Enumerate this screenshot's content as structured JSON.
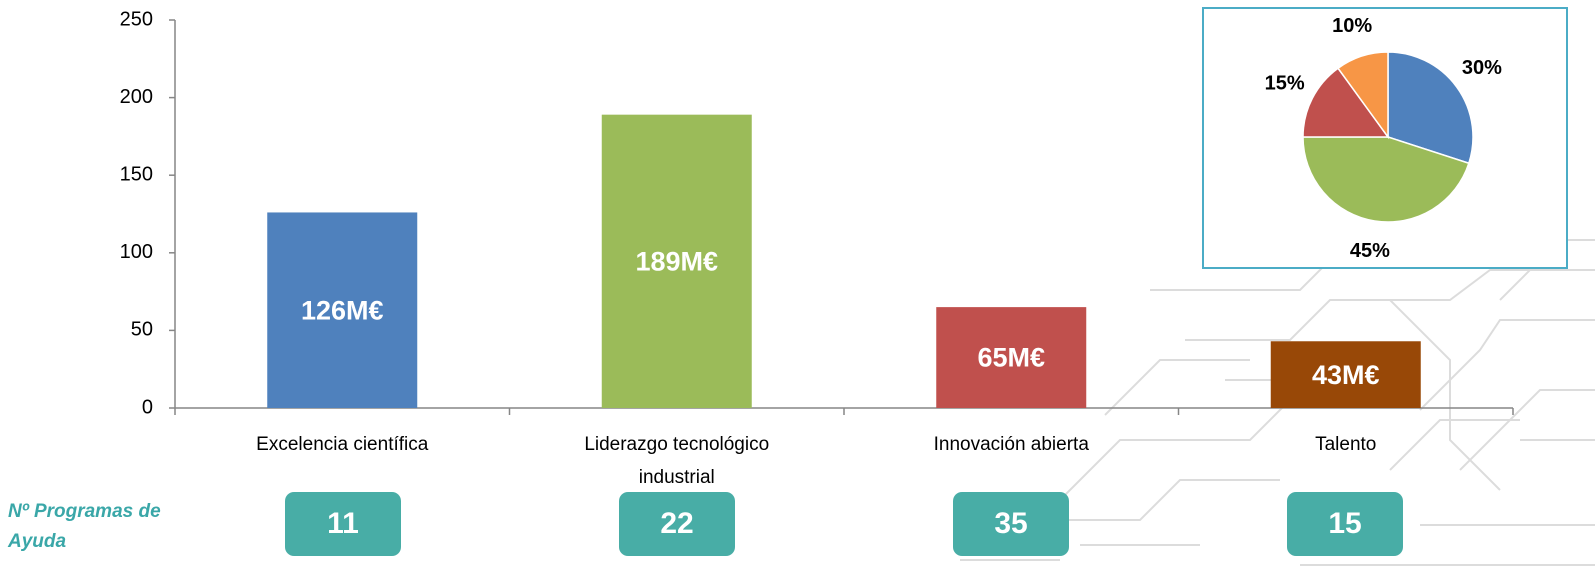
{
  "chart_data": [
    {
      "type": "bar",
      "categories": [
        "Excelencia científica",
        "Liderazgo tecnológico industrial",
        "Innovación abierta",
        "Talento"
      ],
      "values": [
        126,
        189,
        65,
        43
      ],
      "value_labels": [
        "126M€",
        "189M€",
        "65M€",
        "43M€"
      ],
      "colors": [
        "#4f81bd",
        "#9bbb59",
        "#c0504d",
        "#984807"
      ],
      "ylim": [
        0,
        250
      ],
      "yticks": [
        0,
        50,
        100,
        150,
        200,
        250
      ],
      "grid": false
    },
    {
      "type": "pie",
      "values": [
        30,
        45,
        15,
        10
      ],
      "value_labels": [
        "30%",
        "45%",
        "15%",
        "10%"
      ],
      "colors": [
        "#4f81bd",
        "#9bbb59",
        "#c0504d",
        "#f79646"
      ]
    }
  ],
  "programs": {
    "label": "Nº Programas de Ayuda",
    "values": [
      11,
      22,
      35,
      15
    ]
  }
}
